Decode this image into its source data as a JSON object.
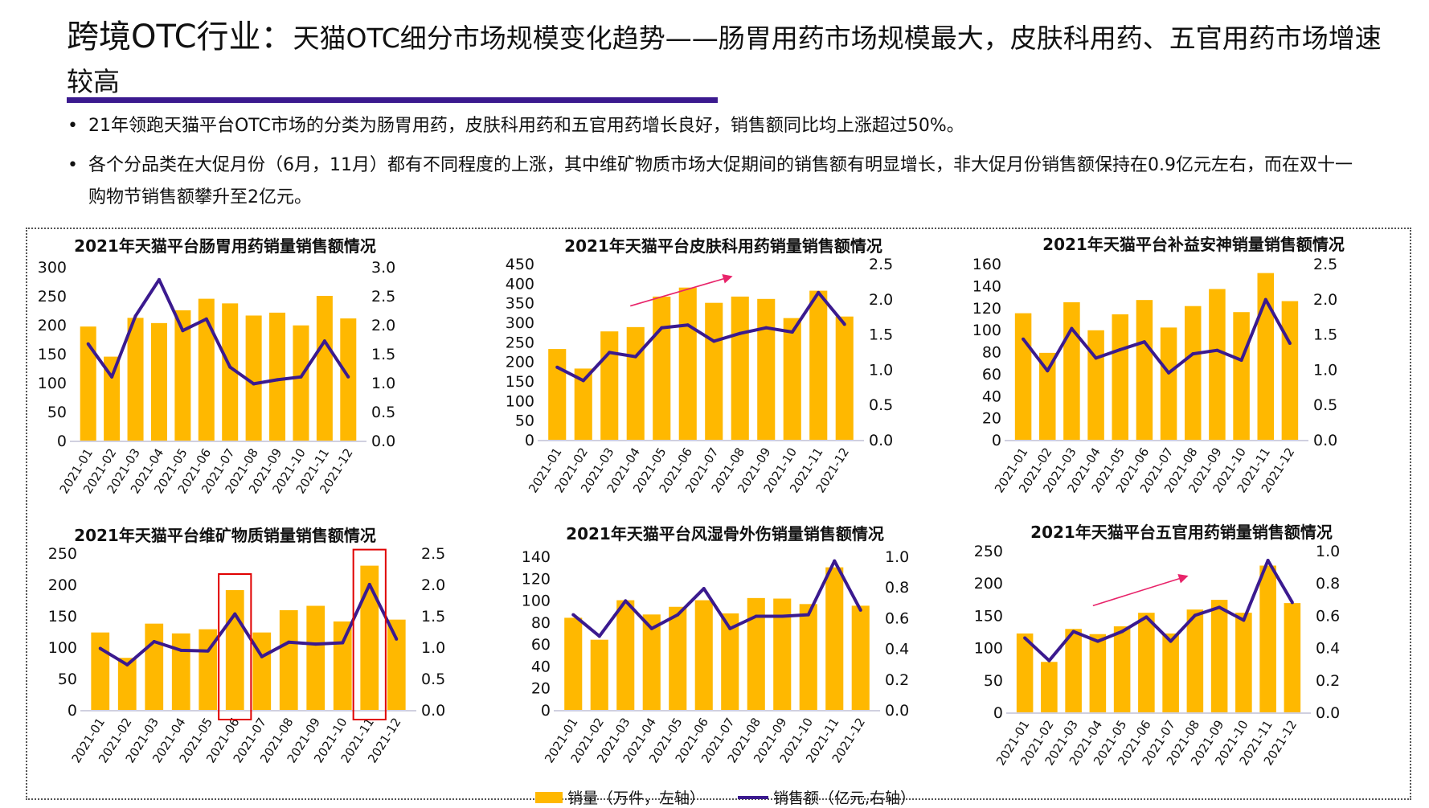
{
  "header": {
    "title_main": "跨境OTC行业：",
    "title_sub": "天猫OTC细分市场规模变化趋势——肠胃用药市场规模最大，皮肤科用药、五官用药市场增速较高"
  },
  "bullets": [
    "21年领跑天猫平台OTC市场的分类为肠胃用药，皮肤科用药和五官用药增长良好，销售额同比均上涨超过50%。",
    "各个分品类在大促月份（6月，11月）都有不同程度的上涨，其中维矿物质市场大促期间的销售额有明显增长，非大促月份销售额保持在0.9亿元左右，而在双十一购物节销售额攀升至2亿元。"
  ],
  "legend": {
    "bar_label": "销量（万件，左轴）",
    "line_label": "销售额（亿元,右轴）"
  },
  "colors": {
    "bar": "#ffb800",
    "line": "#3b1a8f",
    "arrow": "#e8246a",
    "highlight_box": "#e00000",
    "title_underline": "#3b1a8f"
  },
  "chart_data": [
    {
      "type": "bar+line",
      "title": "2021年天猫平台肠胃用药销量销售额情况",
      "categories": [
        "2021-01",
        "2021-02",
        "2021-03",
        "2021-04",
        "2021-05",
        "2021-06",
        "2021-07",
        "2021-08",
        "2021-09",
        "2021-10",
        "2021-11",
        "2021-12"
      ],
      "series": [
        {
          "name": "销量（万件，左轴）",
          "type": "bar",
          "axis": "left",
          "values": [
            197,
            145,
            212,
            203,
            225,
            245,
            237,
            216,
            221,
            199,
            250,
            211
          ]
        },
        {
          "name": "销售额（亿元,右轴）",
          "type": "line",
          "axis": "right",
          "values": [
            1.67,
            1.1,
            2.15,
            2.78,
            1.9,
            2.1,
            1.27,
            0.98,
            1.05,
            1.1,
            1.72,
            1.1
          ]
        }
      ],
      "ylim_left": [
        0,
        300
      ],
      "yticks_left": [
        "0",
        "50",
        "100",
        "150",
        "200",
        "250",
        "300"
      ],
      "ylim_right": [
        0,
        3
      ],
      "yticks_right": [
        "0.0",
        "0.5",
        "1.0",
        "1.5",
        "2.0",
        "2.5",
        "3.0"
      ],
      "grid": false
    },
    {
      "type": "bar+line",
      "title": "2021年天猫平台皮肤科用药销量销售额情况",
      "categories": [
        "2021-01",
        "2021-02",
        "2021-03",
        "2021-04",
        "2021-05",
        "2021-06",
        "2021-07",
        "2021-08",
        "2021-09",
        "2021-10",
        "2021-11",
        "2021-12"
      ],
      "series": [
        {
          "name": "销量（万件，左轴）",
          "type": "bar",
          "axis": "left",
          "values": [
            232,
            182,
            277,
            288,
            366,
            389,
            350,
            366,
            360,
            311,
            381,
            315
          ]
        },
        {
          "name": "销售额（亿元,右轴）",
          "type": "line",
          "axis": "right",
          "values": [
            1.03,
            0.84,
            1.24,
            1.18,
            1.59,
            1.63,
            1.4,
            1.51,
            1.59,
            1.53,
            2.09,
            1.64
          ]
        }
      ],
      "ylim_left": [
        0,
        450
      ],
      "yticks_left": [
        "0",
        "50",
        "100",
        "150",
        "200",
        "250",
        "300",
        "350",
        "400",
        "450"
      ],
      "ylim_right": [
        0,
        2.5
      ],
      "yticks_right": [
        "0.0",
        "0.5",
        "1.0",
        "1.5",
        "2.0",
        "2.5"
      ],
      "annotations": [
        {
          "type": "trend-arrow",
          "from_month": "2021-04",
          "to_month": "2021-08"
        }
      ],
      "grid": false
    },
    {
      "type": "bar+line",
      "title": "2021年天猫平台补益安神销量销售额情况",
      "categories": [
        "2021-01",
        "2021-02",
        "2021-03",
        "2021-04",
        "2021-05",
        "2021-06",
        "2021-07",
        "2021-08",
        "2021-09",
        "2021-10",
        "2021-11",
        "2021-12"
      ],
      "series": [
        {
          "name": "销量（万件，左轴）",
          "type": "bar",
          "axis": "left",
          "values": [
            115,
            79,
            125,
            99.5,
            114,
            127,
            102,
            121.5,
            137,
            116,
            151.5,
            126
          ]
        },
        {
          "name": "销售额（亿元,右轴）",
          "type": "line",
          "axis": "right",
          "values": [
            1.43,
            0.98,
            1.58,
            1.16,
            1.28,
            1.39,
            0.95,
            1.22,
            1.27,
            1.13,
            1.99,
            1.37
          ]
        }
      ],
      "ylim_left": [
        0,
        160
      ],
      "yticks_left": [
        "0",
        "20",
        "40",
        "60",
        "80",
        "100",
        "120",
        "140",
        "160"
      ],
      "ylim_right": [
        0,
        2.5
      ],
      "yticks_right": [
        "0.0",
        "0.5",
        "1.0",
        "1.5",
        "2.0",
        "2.5"
      ],
      "grid": false
    },
    {
      "type": "bar+line",
      "title": "2021年天猫平台维矿物质销量销售额情况",
      "categories": [
        "2021-01",
        "2021-02",
        "2021-03",
        "2021-04",
        "2021-05",
        "2021-06",
        "2021-07",
        "2021-08",
        "2021-09",
        "2021-10",
        "2021-11",
        "2021-12"
      ],
      "series": [
        {
          "name": "销量（万件，左轴）",
          "type": "bar",
          "axis": "left",
          "values": [
            123.5,
            83,
            137.6,
            122,
            128.6,
            191,
            123.5,
            159,
            166,
            141,
            230,
            144
          ]
        },
        {
          "name": "销售额（亿元,右轴）",
          "type": "line",
          "axis": "right",
          "values": [
            0.98,
            0.72,
            1.09,
            0.95,
            0.94,
            1.53,
            0.85,
            1.08,
            1.05,
            1.07,
            2.0,
            1.13
          ]
        }
      ],
      "ylim_left": [
        0,
        250
      ],
      "yticks_left": [
        "0",
        "50",
        "100",
        "150",
        "200",
        "250"
      ],
      "ylim_right": [
        0,
        2.5
      ],
      "yticks_right": [
        "0.0",
        "0.5",
        "1.0",
        "1.5",
        "2.0",
        "2.5"
      ],
      "annotations": [
        {
          "type": "highlight-box",
          "month": "2021-06"
        },
        {
          "type": "highlight-box",
          "month": "2021-11"
        }
      ],
      "grid": false
    },
    {
      "type": "bar+line",
      "title": "2021年天猫平台风湿骨外伤销量销售额情况",
      "categories": [
        "2021-01",
        "2021-02",
        "2021-03",
        "2021-04",
        "2021-05",
        "2021-06",
        "2021-07",
        "2021-08",
        "2021-09",
        "2021-10",
        "2021-11",
        "2021-12"
      ],
      "series": [
        {
          "name": "销量（万件，左轴）",
          "type": "bar",
          "axis": "left",
          "values": [
            84,
            64,
            100,
            87,
            94,
            100,
            88,
            102,
            101.5,
            96.5,
            130,
            95
          ]
        },
        {
          "name": "销售额（亿元,右轴）",
          "type": "line",
          "axis": "right",
          "values": [
            0.62,
            0.48,
            0.71,
            0.53,
            0.62,
            0.79,
            0.53,
            0.61,
            0.61,
            0.62,
            0.97,
            0.65
          ]
        }
      ],
      "ylim_left": [
        0,
        140
      ],
      "yticks_left": [
        "0",
        "20",
        "40",
        "60",
        "80",
        "100",
        "120",
        "140"
      ],
      "ylim_right": [
        0,
        1.0
      ],
      "yticks_right": [
        "0.0",
        "0.2",
        "0.4",
        "0.6",
        "0.8",
        "1.0"
      ],
      "grid": false
    },
    {
      "type": "bar+line",
      "title": "2021年天猫平台五官用药销量销售额情况",
      "categories": [
        "2021-01",
        "2021-02",
        "2021-03",
        "2021-04",
        "2021-05",
        "2021-06",
        "2021-07",
        "2021-08",
        "2021-09",
        "2021-10",
        "2021-11",
        "2021-12"
      ],
      "series": [
        {
          "name": "销量（万件，左轴）",
          "type": "bar",
          "axis": "left",
          "values": [
            122,
            78,
            129,
            121,
            133,
            154,
            122,
            159,
            174,
            154,
            227,
            169
          ]
        },
        {
          "name": "销售额（亿元,右轴）",
          "type": "line",
          "axis": "right",
          "values": [
            0.46,
            0.32,
            0.5,
            0.44,
            0.5,
            0.59,
            0.44,
            0.6,
            0.65,
            0.57,
            0.94,
            0.68
          ]
        }
      ],
      "ylim_left": [
        0,
        250
      ],
      "yticks_left": [
        "0",
        "50",
        "100",
        "150",
        "200",
        "250"
      ],
      "ylim_right": [
        0,
        1.0
      ],
      "yticks_right": [
        "0.0",
        "0.2",
        "0.4",
        "0.6",
        "0.8",
        "1.0"
      ],
      "annotations": [
        {
          "type": "trend-arrow",
          "from_month": "2021-04",
          "to_month": "2021-08"
        }
      ],
      "grid": false
    }
  ]
}
